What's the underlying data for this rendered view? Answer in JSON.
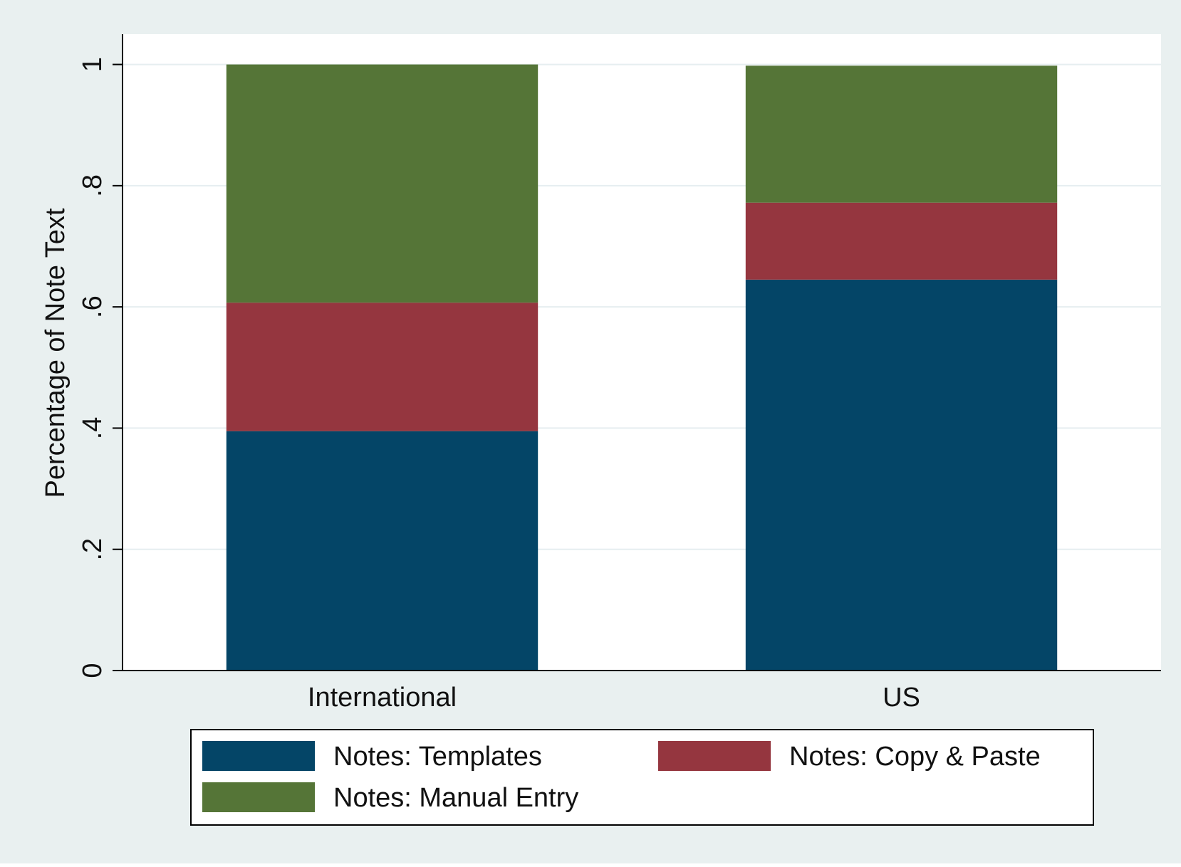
{
  "chart_data": {
    "type": "bar",
    "stacked": true,
    "title": "",
    "xlabel": "",
    "ylabel": "Percentage of Note Text",
    "ylim": [
      0,
      1.05
    ],
    "grid": true,
    "categories": [
      "International",
      "US"
    ],
    "y_ticks": [
      {
        "value": 0,
        "label": "0"
      },
      {
        "value": 0.2,
        "label": ".2"
      },
      {
        "value": 0.4,
        "label": ".4"
      },
      {
        "value": 0.6,
        "label": ".6"
      },
      {
        "value": 0.8,
        "label": ".8"
      },
      {
        "value": 1,
        "label": "1"
      }
    ],
    "series": [
      {
        "name": "Notes: Templates",
        "values": [
          0.395,
          0.645
        ],
        "color": "#044567"
      },
      {
        "name": "Notes: Copy & Paste",
        "values": [
          0.212,
          0.127
        ],
        "color": "#95363f"
      },
      {
        "name": "Notes: Manual Entry",
        "values": [
          0.393,
          0.226
        ],
        "color": "#557537"
      }
    ],
    "legend_position": "bottom",
    "colors": {
      "outer_background": "#e9f0f0",
      "plot_background": "#ffffff",
      "grid": "#e6eef0",
      "axis": "#000000"
    }
  }
}
